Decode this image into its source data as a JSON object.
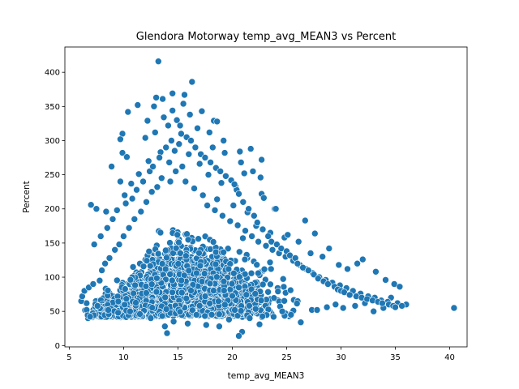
{
  "chart_data": {
    "type": "scatter",
    "title": "Glendora Motorway temp_avg_MEAN3 vs Percent",
    "xlabel": "temp_avg_MEAN3",
    "ylabel": "Percent",
    "xlim": [
      4.6,
      41.6
    ],
    "ylim": [
      -2,
      437
    ],
    "xticks": [
      5,
      10,
      15,
      20,
      25,
      30,
      35,
      40
    ],
    "yticks": [
      0,
      50,
      100,
      150,
      200,
      250,
      300,
      350,
      400
    ],
    "grid": false,
    "legend": "none",
    "marker_color": "#1f77b4",
    "cloud_note_values": {
      "x_range": [
        6,
        36
      ],
      "y_floor_range": [
        25,
        60
      ]
    },
    "points": [
      [
        13.2,
        416
      ],
      [
        16.3,
        386
      ],
      [
        15.6,
        367
      ],
      [
        14.5,
        369
      ],
      [
        13.0,
        363
      ],
      [
        13.6,
        361
      ],
      [
        15.5,
        354
      ],
      [
        11.3,
        352
      ],
      [
        12.8,
        350
      ],
      [
        10.4,
        342
      ],
      [
        14.5,
        344
      ],
      [
        17.2,
        343
      ],
      [
        16.1,
        338
      ],
      [
        13.7,
        334
      ],
      [
        14.9,
        330
      ],
      [
        12.2,
        329
      ],
      [
        18.3,
        329
      ],
      [
        18.6,
        328
      ],
      [
        15.2,
        322
      ],
      [
        14.1,
        322
      ],
      [
        16.8,
        318
      ],
      [
        12.9,
        312
      ],
      [
        9.9,
        310
      ],
      [
        17.9,
        312
      ],
      [
        9.7,
        302
      ],
      [
        19.2,
        300
      ],
      [
        12.0,
        304
      ],
      [
        15.8,
        305
      ],
      [
        21.7,
        288
      ],
      [
        20.7,
        284
      ],
      [
        22.7,
        272
      ],
      [
        18.2,
        290
      ],
      [
        9.9,
        282
      ],
      [
        10.3,
        276
      ],
      [
        19.3,
        282
      ],
      [
        20.8,
        268
      ],
      [
        21.1,
        252
      ],
      [
        21.9,
        255
      ],
      [
        22.6,
        246
      ],
      [
        8.9,
        262
      ],
      [
        9.7,
        240
      ],
      [
        20.3,
        233
      ],
      [
        20.4,
        228
      ],
      [
        22.7,
        222
      ],
      [
        22.9,
        216
      ],
      [
        18.6,
        214
      ],
      [
        23.9,
        200
      ],
      [
        24.0,
        200
      ],
      [
        26.7,
        183
      ],
      [
        27.6,
        164
      ],
      [
        7.0,
        206
      ],
      [
        7.5,
        200
      ],
      [
        8.4,
        196
      ],
      [
        10.1,
        220
      ],
      [
        10.7,
        237
      ],
      [
        11.4,
        251
      ],
      [
        12.3,
        270
      ],
      [
        13.4,
        283
      ],
      [
        14.2,
        268
      ],
      [
        16.0,
        280
      ],
      [
        17.0,
        266
      ],
      [
        17.8,
        250
      ],
      [
        19.0,
        238
      ],
      [
        20.1,
        205
      ],
      [
        21.4,
        195
      ],
      [
        22.2,
        175
      ],
      [
        23.5,
        165
      ],
      [
        24.8,
        158
      ],
      [
        25.1,
        162
      ],
      [
        26.1,
        152
      ],
      [
        27.2,
        135
      ],
      [
        28.3,
        130
      ],
      [
        28.9,
        142
      ],
      [
        29.8,
        118
      ],
      [
        30.6,
        112
      ],
      [
        31.5,
        120
      ],
      [
        32.0,
        126
      ],
      [
        33.2,
        108
      ],
      [
        34.1,
        96
      ],
      [
        34.9,
        90
      ],
      [
        35.4,
        86
      ],
      [
        36.0,
        60
      ],
      [
        40.4,
        55
      ],
      [
        35.2,
        62
      ],
      [
        34.6,
        70
      ],
      [
        33.9,
        55
      ],
      [
        33.0,
        50
      ],
      [
        32.2,
        62
      ],
      [
        31.3,
        58
      ],
      [
        30.2,
        55
      ],
      [
        29.5,
        60
      ],
      [
        28.7,
        56
      ],
      [
        27.8,
        52
      ],
      [
        26.3,
        34
      ],
      [
        25.4,
        45
      ],
      [
        24.6,
        50
      ],
      [
        23.8,
        42
      ],
      [
        22.5,
        31
      ],
      [
        21.6,
        40
      ],
      [
        20.9,
        20
      ],
      [
        20.6,
        14
      ],
      [
        19.7,
        38
      ],
      [
        18.8,
        28
      ],
      [
        17.6,
        30
      ],
      [
        16.7,
        45
      ],
      [
        15.9,
        32
      ],
      [
        14.6,
        35
      ],
      [
        14.0,
        18
      ],
      [
        13.8,
        28
      ],
      [
        12.5,
        40
      ],
      [
        11.5,
        46
      ],
      [
        10.6,
        50
      ],
      [
        9.5,
        48
      ],
      [
        8.6,
        52
      ],
      [
        7.6,
        58
      ],
      [
        6.6,
        62
      ],
      [
        6.1,
        65
      ],
      [
        6.2,
        72
      ],
      [
        6.4,
        80
      ],
      [
        6.8,
        85
      ],
      [
        7.2,
        90
      ],
      [
        7.8,
        95
      ],
      [
        8.0,
        110
      ],
      [
        8.3,
        120
      ],
      [
        8.7,
        128
      ],
      [
        9.2,
        140
      ],
      [
        9.6,
        148
      ],
      [
        10.0,
        160
      ],
      [
        10.5,
        172
      ],
      [
        11.0,
        185
      ],
      [
        11.6,
        196
      ],
      [
        12.1,
        210
      ],
      [
        12.6,
        225
      ],
      [
        13.1,
        232
      ],
      [
        13.5,
        245
      ],
      [
        14.3,
        240
      ],
      [
        14.8,
        255
      ],
      [
        15.4,
        262
      ],
      [
        15.7,
        240
      ],
      [
        16.5,
        230
      ],
      [
        17.3,
        220
      ],
      [
        17.7,
        205
      ],
      [
        18.4,
        198
      ],
      [
        19.1,
        190
      ],
      [
        19.8,
        182
      ],
      [
        20.5,
        176
      ],
      [
        21.2,
        168
      ],
      [
        21.8,
        160
      ],
      [
        22.4,
        152
      ],
      [
        23.1,
        146
      ],
      [
        23.7,
        140
      ],
      [
        24.3,
        135
      ],
      [
        24.9,
        130
      ],
      [
        25.6,
        124
      ],
      [
        26.2,
        118
      ],
      [
        26.8,
        112
      ],
      [
        27.4,
        106
      ],
      [
        28.0,
        100
      ],
      [
        28.6,
        96
      ],
      [
        29.2,
        92
      ],
      [
        29.9,
        88
      ],
      [
        30.5,
        84
      ],
      [
        31.1,
        80
      ],
      [
        31.8,
        76
      ],
      [
        32.5,
        72
      ],
      [
        33.1,
        70
      ],
      [
        33.7,
        66
      ],
      [
        34.3,
        64
      ],
      [
        7.3,
        148
      ],
      [
        7.9,
        160
      ],
      [
        8.5,
        172
      ],
      [
        9.0,
        185
      ],
      [
        9.4,
        198
      ],
      [
        10.2,
        208
      ],
      [
        10.8,
        215
      ],
      [
        11.2,
        228
      ],
      [
        11.8,
        240
      ],
      [
        12.4,
        255
      ],
      [
        12.7,
        262
      ],
      [
        13.3,
        275
      ],
      [
        13.9,
        290
      ],
      [
        14.4,
        300
      ],
      [
        14.7,
        285
      ],
      [
        15.1,
        295
      ],
      [
        15.3,
        310
      ],
      [
        16.2,
        300
      ],
      [
        16.6,
        290
      ],
      [
        17.1,
        280
      ],
      [
        17.5,
        275
      ],
      [
        18.0,
        268
      ],
      [
        18.5,
        260
      ],
      [
        18.9,
        255
      ],
      [
        19.4,
        248
      ],
      [
        19.9,
        242
      ],
      [
        20.2,
        236
      ],
      [
        20.6,
        222
      ],
      [
        21.0,
        210
      ],
      [
        21.5,
        200
      ],
      [
        22.0,
        190
      ],
      [
        22.3,
        180
      ],
      [
        22.8,
        170
      ],
      [
        23.3,
        160
      ],
      [
        23.6,
        152
      ],
      [
        24.1,
        148
      ],
      [
        24.5,
        142
      ],
      [
        25.0,
        138
      ],
      [
        25.3,
        132
      ],
      [
        25.8,
        128
      ],
      [
        26.0,
        120
      ],
      [
        26.5,
        114
      ],
      [
        27.0,
        110
      ],
      [
        27.5,
        104
      ],
      [
        27.9,
        98
      ],
      [
        28.4,
        94
      ],
      [
        28.8,
        90
      ],
      [
        29.4,
        86
      ],
      [
        29.7,
        82
      ],
      [
        30.0,
        80
      ],
      [
        30.3,
        78
      ],
      [
        30.8,
        74
      ],
      [
        31.4,
        72
      ],
      [
        31.9,
        70
      ],
      [
        32.4,
        68
      ],
      [
        32.9,
        66
      ],
      [
        33.4,
        64
      ],
      [
        33.8,
        62
      ],
      [
        34.4,
        60
      ],
      [
        34.8,
        58
      ],
      [
        35.0,
        56
      ],
      [
        35.6,
        58
      ]
    ]
  }
}
